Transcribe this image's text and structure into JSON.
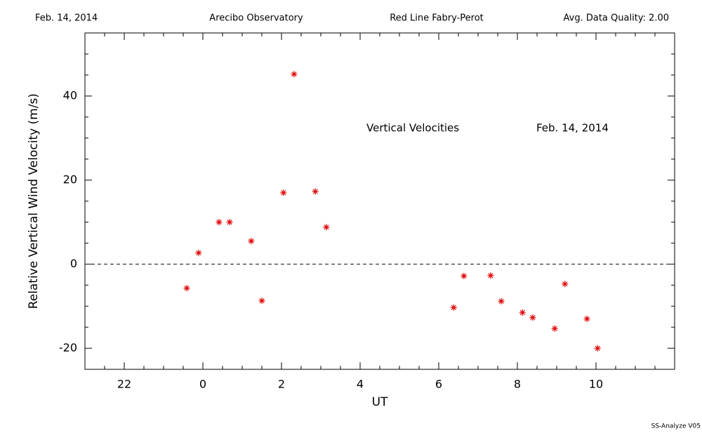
{
  "chart_data": {
    "type": "scatter",
    "header": [
      "Feb. 14, 2014",
      "Arecibo Observatory",
      "Red Line Fabry-Perot",
      "Avg. Data Quality: 2.00"
    ],
    "annotations": [
      "Vertical Velocities",
      "Feb. 14, 2014"
    ],
    "footer": "SS-Analyze V05",
    "xlabel": "UT",
    "ylabel": "Relative Vertical Wind Velocity (m/s)",
    "x": [
      -0.41,
      -0.11,
      0.41,
      0.68,
      1.23,
      1.5,
      2.05,
      2.32,
      2.86,
      3.14,
      6.38,
      6.64,
      7.32,
      7.59,
      8.13,
      8.39,
      8.95,
      9.21,
      9.77,
      10.04
    ],
    "values": [
      -5.7,
      2.7,
      10,
      10,
      5.5,
      -8.7,
      17,
      45.2,
      17.3,
      8.8,
      -10.3,
      -2.8,
      -2.7,
      -8.8,
      -11.5,
      -12.7,
      -15.3,
      -4.7,
      -13,
      -20
    ],
    "color": "#e00000",
    "xlim": [
      -3,
      12
    ],
    "xticks": [
      {
        "value": -2,
        "label": "22"
      },
      0,
      2,
      4,
      6,
      8,
      10
    ],
    "ylim": [
      -25,
      55
    ],
    "yticks": [
      -20,
      0,
      20,
      40
    ],
    "hline": 0
  }
}
